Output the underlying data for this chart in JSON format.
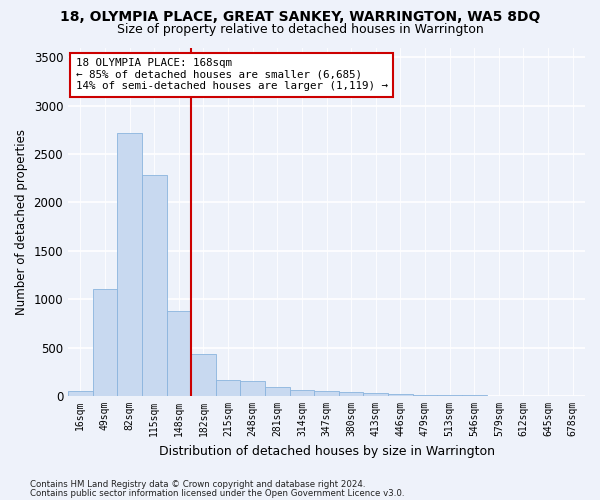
{
  "title": "18, OLYMPIA PLACE, GREAT SANKEY, WARRINGTON, WA5 8DQ",
  "subtitle": "Size of property relative to detached houses in Warrington",
  "xlabel": "Distribution of detached houses by size in Warrington",
  "ylabel": "Number of detached properties",
  "bar_labels": [
    "16sqm",
    "49sqm",
    "82sqm",
    "115sqm",
    "148sqm",
    "182sqm",
    "215sqm",
    "248sqm",
    "281sqm",
    "314sqm",
    "347sqm",
    "380sqm",
    "413sqm",
    "446sqm",
    "479sqm",
    "513sqm",
    "546sqm",
    "579sqm",
    "612sqm",
    "645sqm",
    "678sqm"
  ],
  "bar_values": [
    50,
    1110,
    2720,
    2280,
    880,
    430,
    170,
    160,
    90,
    65,
    50,
    40,
    30,
    22,
    15,
    10,
    8,
    5,
    4,
    3,
    2
  ],
  "bar_color": "#c8d9f0",
  "bar_edgecolor": "#8ab4de",
  "ylim": [
    0,
    3600
  ],
  "yticks": [
    0,
    500,
    1000,
    1500,
    2000,
    2500,
    3000,
    3500
  ],
  "vline_x": 4.5,
  "vline_color": "#cc0000",
  "annotation_line1": "18 OLYMPIA PLACE: 168sqm",
  "annotation_line2": "← 85% of detached houses are smaller (6,685)",
  "annotation_line3": "14% of semi-detached houses are larger (1,119) →",
  "annotation_box_color": "#ffffff",
  "annotation_box_edgecolor": "#cc0000",
  "footnote1": "Contains HM Land Registry data © Crown copyright and database right 2024.",
  "footnote2": "Contains public sector information licensed under the Open Government Licence v3.0.",
  "bg_color": "#eef2fa"
}
